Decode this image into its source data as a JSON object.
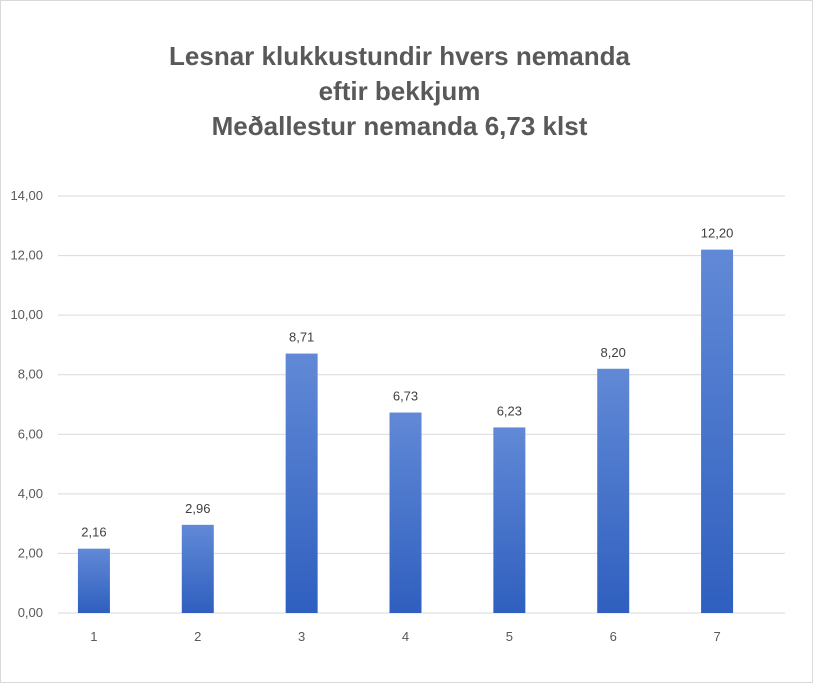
{
  "chart_data": {
    "type": "bar",
    "title_lines": [
      "Lesnar klukkustundir hvers nemanda",
      "eftir bekkjum",
      "Meðallestur nemanda 6,73 klst"
    ],
    "categories": [
      "1",
      "2",
      "3",
      "4",
      "5",
      "6",
      "7"
    ],
    "values": [
      2.16,
      2.96,
      8.71,
      6.73,
      6.23,
      8.2,
      12.2
    ],
    "data_labels": [
      "2,16",
      "2,96",
      "8,71",
      "6,73",
      "6,23",
      "8,20",
      "12,20"
    ],
    "y_ticks": [
      "0,00",
      "2,00",
      "4,00",
      "6,00",
      "8,00",
      "10,00",
      "12,00",
      "14,00"
    ],
    "ylim": [
      0,
      14
    ],
    "grid": true,
    "legend": "none",
    "bar_color_top": "#6189d6",
    "bar_color_bottom": "#2f5fbf",
    "grid_color": "#d9d9d9",
    "title_color": "#595959"
  }
}
